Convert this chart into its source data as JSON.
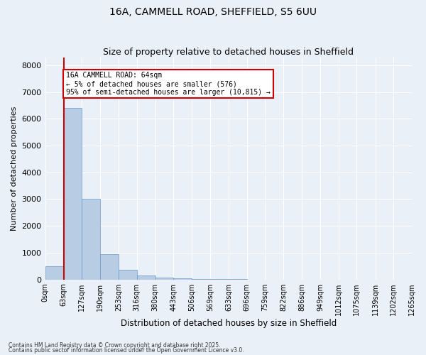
{
  "title1": "16A, CAMMELL ROAD, SHEFFIELD, S5 6UU",
  "title2": "Size of property relative to detached houses in Sheffield",
  "xlabel": "Distribution of detached houses by size in Sheffield",
  "ylabel": "Number of detached properties",
  "bar_values": [
    500,
    6400,
    3000,
    950,
    350,
    150,
    80,
    50,
    15,
    8,
    4,
    2,
    1,
    1,
    0,
    0,
    0,
    0,
    0,
    0
  ],
  "bin_labels": [
    "0sqm",
    "63sqm",
    "127sqm",
    "190sqm",
    "253sqm",
    "316sqm",
    "380sqm",
    "443sqm",
    "506sqm",
    "569sqm",
    "633sqm",
    "696sqm",
    "759sqm",
    "822sqm",
    "886sqm",
    "949sqm",
    "1012sqm",
    "1075sqm",
    "1139sqm",
    "1202sqm",
    "1265sqm"
  ],
  "bin_edges": [
    0,
    63,
    127,
    190,
    253,
    316,
    380,
    443,
    506,
    569,
    633,
    696,
    759,
    822,
    886,
    949,
    1012,
    1075,
    1139,
    1202,
    1265
  ],
  "bar_color": "#b8cce4",
  "bar_edge_color": "#6699cc",
  "vline_x": 64,
  "vline_color": "#cc0000",
  "annotation_line1": "16A CAMMELL ROAD: 64sqm",
  "annotation_line2": "← 5% of detached houses are smaller (576)",
  "annotation_line3": "95% of semi-detached houses are larger (10,815) →",
  "annotation_box_color": "#ffffff",
  "annotation_box_edge_color": "#cc0000",
  "ylim": [
    0,
    8300
  ],
  "yticks": [
    0,
    1000,
    2000,
    3000,
    4000,
    5000,
    6000,
    7000,
    8000
  ],
  "bg_color": "#eaf0f8",
  "grid_color": "#ffffff",
  "fig_bg_color": "#eaf0f8",
  "footer1": "Contains HM Land Registry data © Crown copyright and database right 2025.",
  "footer2": "Contains public sector information licensed under the Open Government Licence v3.0."
}
